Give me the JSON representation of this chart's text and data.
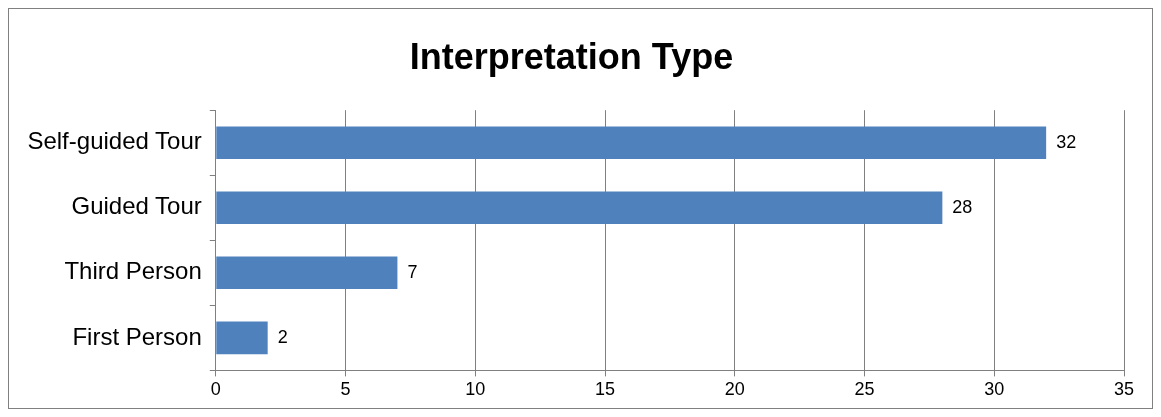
{
  "chart_data": {
    "type": "bar",
    "title": "Interpretation Type",
    "orientation": "horizontal",
    "categories": [
      "Self-guided Tour",
      "Guided Tour",
      "Third Person",
      "First Person"
    ],
    "values": [
      32,
      28,
      7,
      2
    ],
    "color": "#4f81bd",
    "xlim": [
      0,
      35
    ],
    "xticks": [
      0,
      5,
      10,
      15,
      20,
      25,
      30,
      35
    ],
    "grid": "x",
    "data_labels": true,
    "legend": false
  }
}
